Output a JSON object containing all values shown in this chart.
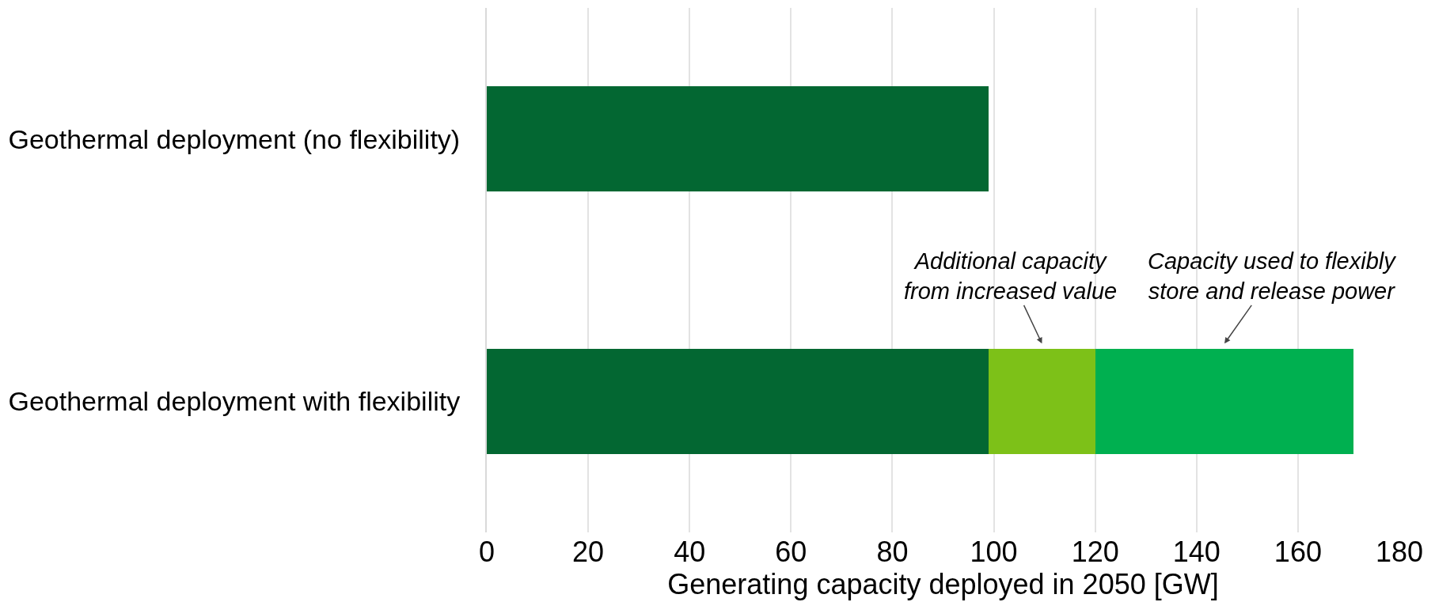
{
  "chart_data": {
    "type": "bar",
    "orientation": "horizontal",
    "stacked": true,
    "categories": [
      "Geothermal deployment (no flexibility)",
      "Geothermal deployment with flexibility"
    ],
    "series": [
      {
        "color": "#036732",
        "values": [
          99,
          99
        ]
      },
      {
        "color": "#7dc118",
        "values": [
          null,
          21
        ]
      },
      {
        "color": "#00b050",
        "values": [
          null,
          51
        ]
      }
    ],
    "xlabel": "Generating capacity deployed in 2050 [GW]",
    "xlim": [
      0,
      180
    ],
    "xticks": [
      0,
      20,
      40,
      60,
      80,
      100,
      120,
      140,
      160,
      180
    ],
    "grid": "x",
    "annotations": [
      "Additional capacity\nfrom increased value",
      "Capacity used to flexibly\nstore and release power"
    ]
  }
}
